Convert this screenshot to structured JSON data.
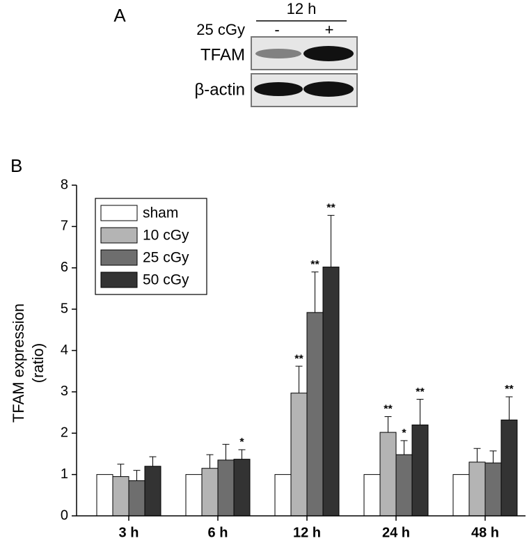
{
  "panel_labels": [
    "A",
    "B"
  ],
  "blot": {
    "time": "12 h",
    "dose_label": "25 cGy",
    "lanes": [
      "-",
      "+"
    ],
    "rows": [
      "TFAM",
      "β-actin"
    ]
  },
  "chart_data": {
    "type": "bar",
    "ylabel": [
      "TFAM expression",
      "(ratio)"
    ],
    "categories": [
      "3 h",
      "6 h",
      "12 h",
      "24 h",
      "48 h"
    ],
    "series": [
      {
        "name": "sham",
        "color": "#ffffff",
        "values": [
          1,
          1,
          1,
          1,
          1
        ],
        "errors": [
          null,
          null,
          null,
          null,
          null
        ],
        "annotations": [
          null,
          null,
          null,
          null,
          null
        ]
      },
      {
        "name": "10 cGy",
        "color": "#b4b4b4",
        "values": [
          0.95,
          1.15,
          2.97,
          2.02,
          1.3
        ],
        "errors": [
          0.3,
          0.33,
          0.65,
          0.38,
          0.33
        ],
        "annotations": [
          null,
          null,
          "**",
          "**",
          null
        ]
      },
      {
        "name": "25 cGy",
        "color": "#6e6e6e",
        "values": [
          0.85,
          1.35,
          4.92,
          1.48,
          1.28
        ],
        "errors": [
          0.25,
          0.38,
          0.98,
          0.34,
          0.29
        ],
        "annotations": [
          null,
          null,
          "**",
          "*",
          null
        ]
      },
      {
        "name": "50 cGy",
        "color": "#333333",
        "values": [
          1.2,
          1.37,
          6.02,
          2.2,
          2.32
        ],
        "errors": [
          0.23,
          0.23,
          1.25,
          0.62,
          0.56
        ],
        "annotations": [
          null,
          "*",
          "**",
          "**",
          "**"
        ]
      }
    ],
    "ylim": [
      0,
      8
    ],
    "yticks": [
      0,
      1,
      2,
      3,
      4,
      5,
      6,
      7,
      8
    ],
    "legend": "upper-left"
  }
}
